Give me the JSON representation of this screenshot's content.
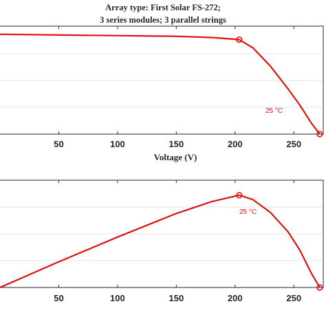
{
  "title": {
    "line1": "Array type: First Solar FS-272;",
    "line2": "3 series modules; 3 parallel strings"
  },
  "colors": {
    "curve": "#e01010",
    "axis": "#262626"
  },
  "chart_data": [
    {
      "type": "line",
      "name": "top",
      "xlabel": "Voltage (V)",
      "ylabel": "",
      "xlim": [
        0,
        275
      ],
      "ylim": [
        0,
        1
      ],
      "xticks": [
        50,
        100,
        150,
        200,
        250
      ],
      "annotation": "25 °C",
      "x": [
        0,
        50,
        100,
        150,
        180,
        203.5,
        215,
        230,
        245,
        255,
        265,
        272
      ],
      "y": [
        0.925,
        0.918,
        0.912,
        0.906,
        0.895,
        0.875,
        0.8,
        0.63,
        0.42,
        0.27,
        0.1,
        0.0
      ],
      "markers": [
        {
          "x": 203.5,
          "y": 0.875
        },
        {
          "x": 272,
          "y": 0.0
        }
      ]
    },
    {
      "type": "line",
      "name": "bottom",
      "xlabel": "",
      "ylabel": "",
      "xlim": [
        0,
        275
      ],
      "ylim": [
        0,
        1
      ],
      "xticks": [
        50,
        100,
        150,
        200,
        250
      ],
      "annotation": "25 °C",
      "x": [
        0,
        50,
        100,
        150,
        180,
        203.5,
        215,
        230,
        245,
        255,
        265,
        272
      ],
      "y": [
        0.0,
        0.24,
        0.47,
        0.69,
        0.8,
        0.86,
        0.82,
        0.7,
        0.52,
        0.35,
        0.13,
        0.0
      ],
      "markers": [
        {
          "x": 203.5,
          "y": 0.86
        },
        {
          "x": 272,
          "y": 0.0
        }
      ]
    }
  ]
}
